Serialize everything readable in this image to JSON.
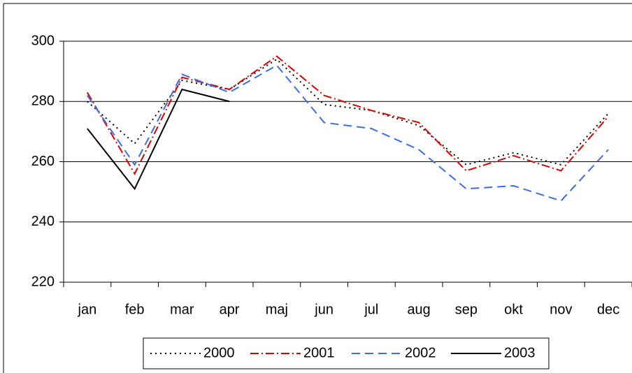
{
  "chart_data": {
    "type": "line",
    "categories": [
      "jan",
      "feb",
      "mar",
      "apr",
      "maj",
      "jun",
      "jul",
      "aug",
      "sep",
      "okt",
      "nov",
      "dec"
    ],
    "series": [
      {
        "name": "2000",
        "color": "#000000",
        "dash": "2,5",
        "values": [
          280,
          266,
          287,
          284,
          294,
          279,
          277,
          272,
          259,
          263,
          259,
          276
        ]
      },
      {
        "name": "2001",
        "color": "#e00000",
        "dash": "12,4,2,4",
        "values": [
          283,
          256,
          288,
          284,
          295,
          282,
          277,
          273,
          257,
          262,
          257,
          275
        ]
      },
      {
        "name": "2002",
        "color": "#3a6ee8",
        "dash": "12,7",
        "values": [
          282,
          259,
          289,
          283,
          292,
          273,
          271,
          264,
          251,
          252,
          247,
          264
        ]
      },
      {
        "name": "2003",
        "color": "#000000",
        "dash": "none",
        "values": [
          271,
          251,
          284,
          280,
          null,
          null,
          null,
          null,
          null,
          null,
          null,
          null
        ]
      }
    ],
    "ylim": [
      220,
      300
    ],
    "yticks": [
      220,
      240,
      260,
      280,
      300
    ],
    "grid": true,
    "legend": "bottom"
  }
}
